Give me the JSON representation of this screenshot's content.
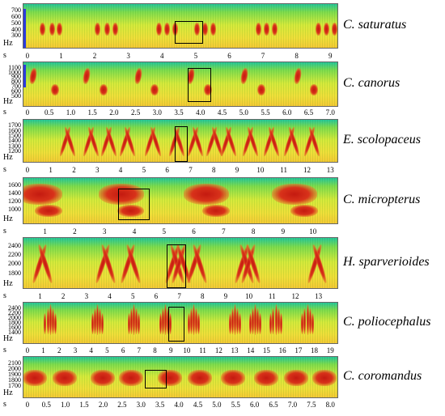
{
  "panels": [
    {
      "species": "C. saturatus",
      "y_unit": "Hz",
      "x_unit": "s",
      "y_ticks": [
        "700",
        "600",
        "500",
        "400",
        "300"
      ],
      "x_ticks": [
        "0",
        "1",
        "2",
        "3",
        "4",
        "5",
        "6",
        "7",
        "8",
        "9"
      ]
    },
    {
      "species": "C. canorus",
      "y_unit": "Hz",
      "x_unit": "s",
      "y_ticks": [
        "1100",
        "1000",
        "900",
        "800",
        "700",
        "600",
        "500"
      ],
      "x_ticks": [
        "0",
        "0.5",
        "1.0",
        "1.5",
        "2.0",
        "2.5",
        "3.0",
        "3.5",
        "4.0",
        "4.5",
        "5.0",
        "5.5",
        "6.0",
        "6.5",
        "7.0"
      ]
    },
    {
      "species": "E. scolopaceus",
      "y_unit": "Hz",
      "x_unit": "s",
      "y_ticks": [
        "1700",
        "1600",
        "1500",
        "1400",
        "1300",
        "1200"
      ],
      "x_ticks": [
        "0",
        "1",
        "2",
        "3",
        "4",
        "5",
        "6",
        "7",
        "8",
        "9",
        "10",
        "11",
        "12",
        "13"
      ]
    },
    {
      "species": "C. micropterus",
      "y_unit": "Hz",
      "x_unit": "s",
      "y_ticks": [
        "1600",
        "1400",
        "1200",
        "1000"
      ],
      "x_ticks": [
        "1",
        "2",
        "3",
        "4",
        "5",
        "6",
        "7",
        "8",
        "9",
        "10"
      ]
    },
    {
      "species": "H. sparverioides",
      "y_unit": "Hz",
      "x_unit": "s",
      "y_ticks": [
        "2400",
        "2200",
        "2000",
        "1800"
      ],
      "x_ticks": [
        "1",
        "2",
        "3",
        "4",
        "5",
        "6",
        "7",
        "8",
        "9",
        "10",
        "11",
        "12",
        "13"
      ]
    },
    {
      "species": "C. poliocephalus",
      "y_unit": "Hz",
      "x_unit": "s",
      "y_ticks": [
        "2400",
        "2200",
        "2000",
        "1800",
        "1600",
        "1400"
      ],
      "x_ticks": [
        "0",
        "1",
        "2",
        "3",
        "4",
        "5",
        "6",
        "7",
        "8",
        "9",
        "10",
        "11",
        "12",
        "13",
        "14",
        "15",
        "16",
        "17",
        "18",
        "19"
      ]
    },
    {
      "species": "C. coromandus",
      "y_unit": "Hz",
      "x_unit": "s",
      "y_ticks": [
        "2100",
        "2000",
        "1900",
        "1800",
        "1700"
      ],
      "x_ticks": [
        "0",
        "0.5",
        "1.0",
        "1.5",
        "2.0",
        "2.5",
        "3.0",
        "3.5",
        "4.0",
        "4.5",
        "5.0",
        "5.5",
        "6.0",
        "6.5",
        "7.0",
        "7.5",
        "8.0"
      ]
    }
  ]
}
